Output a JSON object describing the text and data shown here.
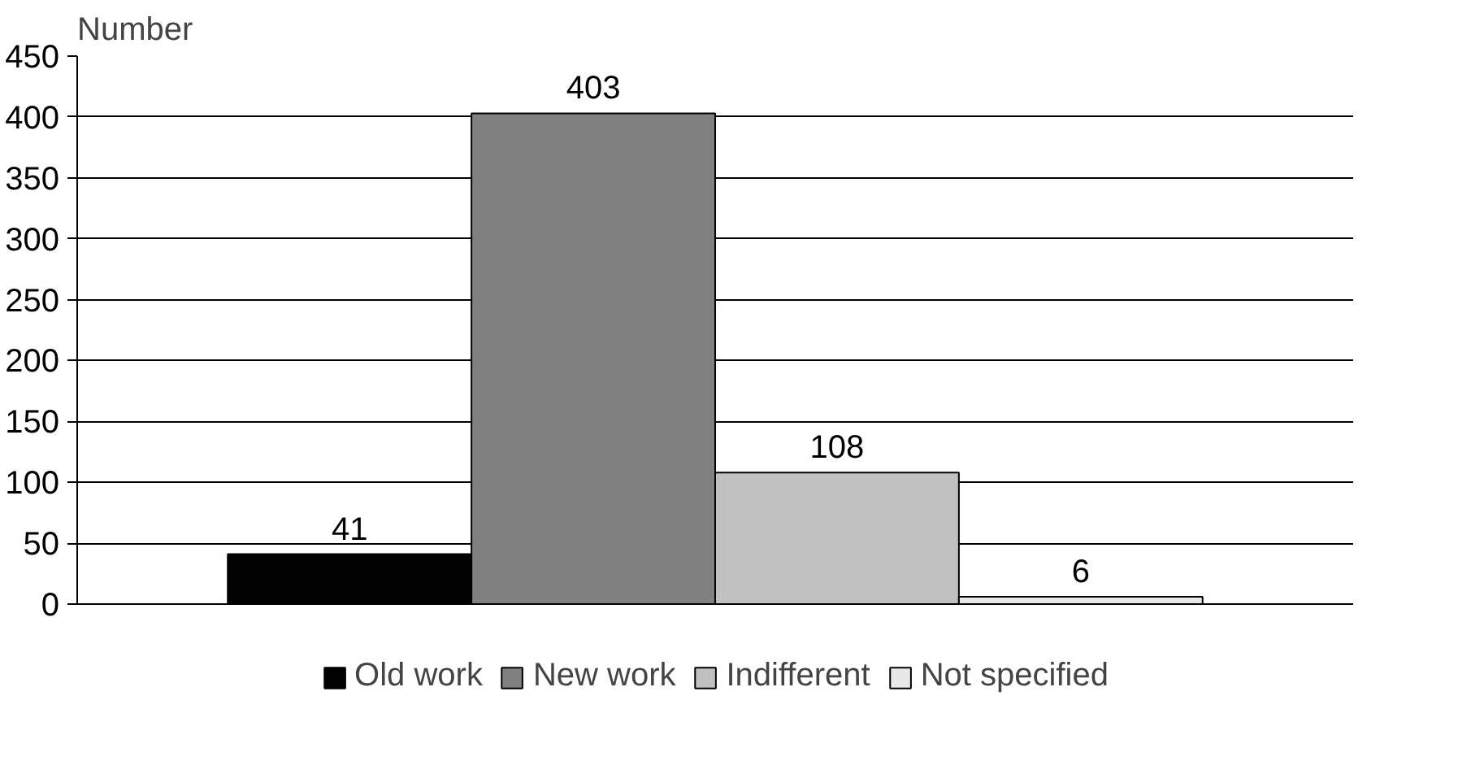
{
  "chart_data": {
    "type": "bar",
    "ylabel": "Number",
    "categories": [
      null
    ],
    "series": [
      {
        "name": "Old work",
        "color": "#000000",
        "values": [
          41
        ]
      },
      {
        "name": "New work",
        "color": "#808080",
        "values": [
          403
        ]
      },
      {
        "name": "Indifferent",
        "color": "#c0c0c0",
        "values": [
          108
        ]
      },
      {
        "name": "Not specified",
        "color": "#e8e8e8",
        "values": [
          6
        ]
      }
    ],
    "ylim": [
      0,
      450
    ],
    "yticks": [
      0,
      50,
      100,
      150,
      200,
      250,
      300,
      350,
      400,
      450
    ],
    "grid": "y",
    "legend": "bottom",
    "data_labels": true,
    "tick_labels": "y"
  }
}
